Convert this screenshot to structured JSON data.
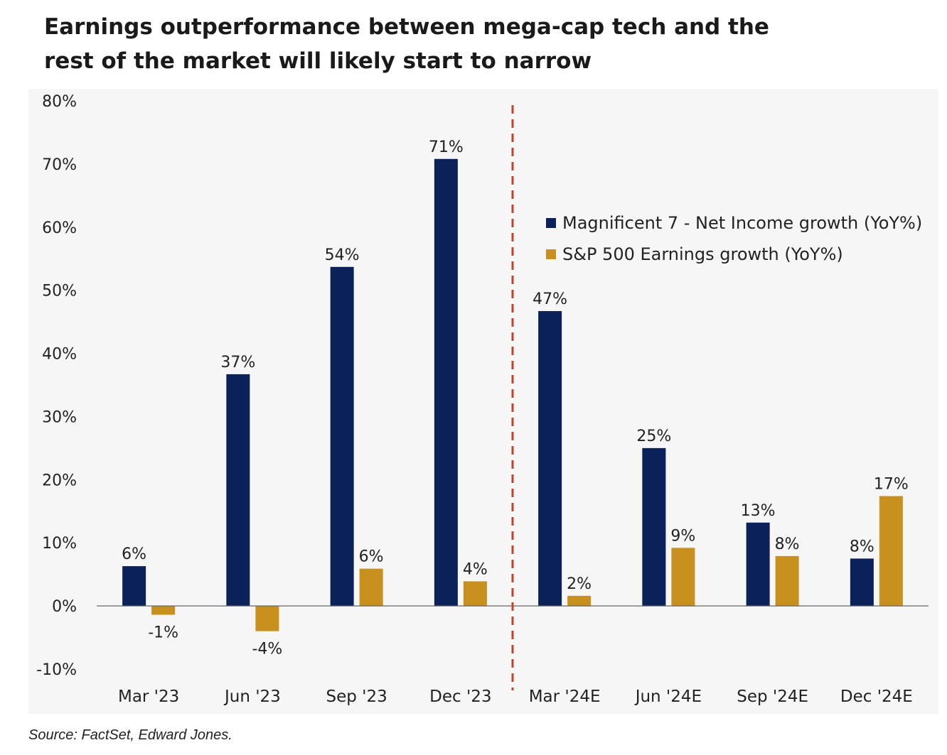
{
  "title_lines": [
    "Earnings outperformance between mega-cap tech and the",
    "rest of the market will likely start to narrow"
  ],
  "source": "Source: FactSet, Edward Jones.",
  "colors": {
    "mag7": "#0a2159",
    "sp500": "#c7901f",
    "divider": "#c0442a",
    "axis": "#666666"
  },
  "legend": [
    {
      "label": "Magnificent 7 - Net Income growth (YoY%)",
      "color": "#0a2159"
    },
    {
      "label": "S&P 500 Earnings growth (YoY%)",
      "color": "#c7901f"
    }
  ],
  "chart_data": {
    "type": "bar",
    "title": "Earnings outperformance between mega-cap tech and the rest of the market will likely start to narrow",
    "categories": [
      "Mar '23",
      "Jun '23",
      "Sep '23",
      "Dec '23",
      "Mar '24E",
      "Jun '24E",
      "Sep '24E",
      "Dec '24E"
    ],
    "series": [
      {
        "name": "Magnificent 7 - Net Income growth (YoY%)",
        "values": [
          6.3,
          36.7,
          53.7,
          70.8,
          46.7,
          25.0,
          13.2,
          7.5
        ],
        "labels": [
          "6%",
          "37%",
          "54%",
          "71%",
          "47%",
          "25%",
          "13%",
          "8%"
        ]
      },
      {
        "name": "S&P 500 Earnings growth (YoY%)",
        "values": [
          -1.4,
          -4.0,
          5.9,
          3.9,
          1.6,
          9.2,
          7.9,
          17.4
        ],
        "labels": [
          "-1%",
          "-4%",
          "6%",
          "4%",
          "2%",
          "9%",
          "8%",
          "17%"
        ]
      }
    ],
    "y_ticks": [
      "-10%",
      "0%",
      "10%",
      "20%",
      "30%",
      "40%",
      "50%",
      "60%",
      "70%",
      "80%"
    ],
    "ylim": [
      -10,
      80
    ],
    "divider_after_category": "Dec '23",
    "legend_position": "top-right",
    "grid": false
  }
}
